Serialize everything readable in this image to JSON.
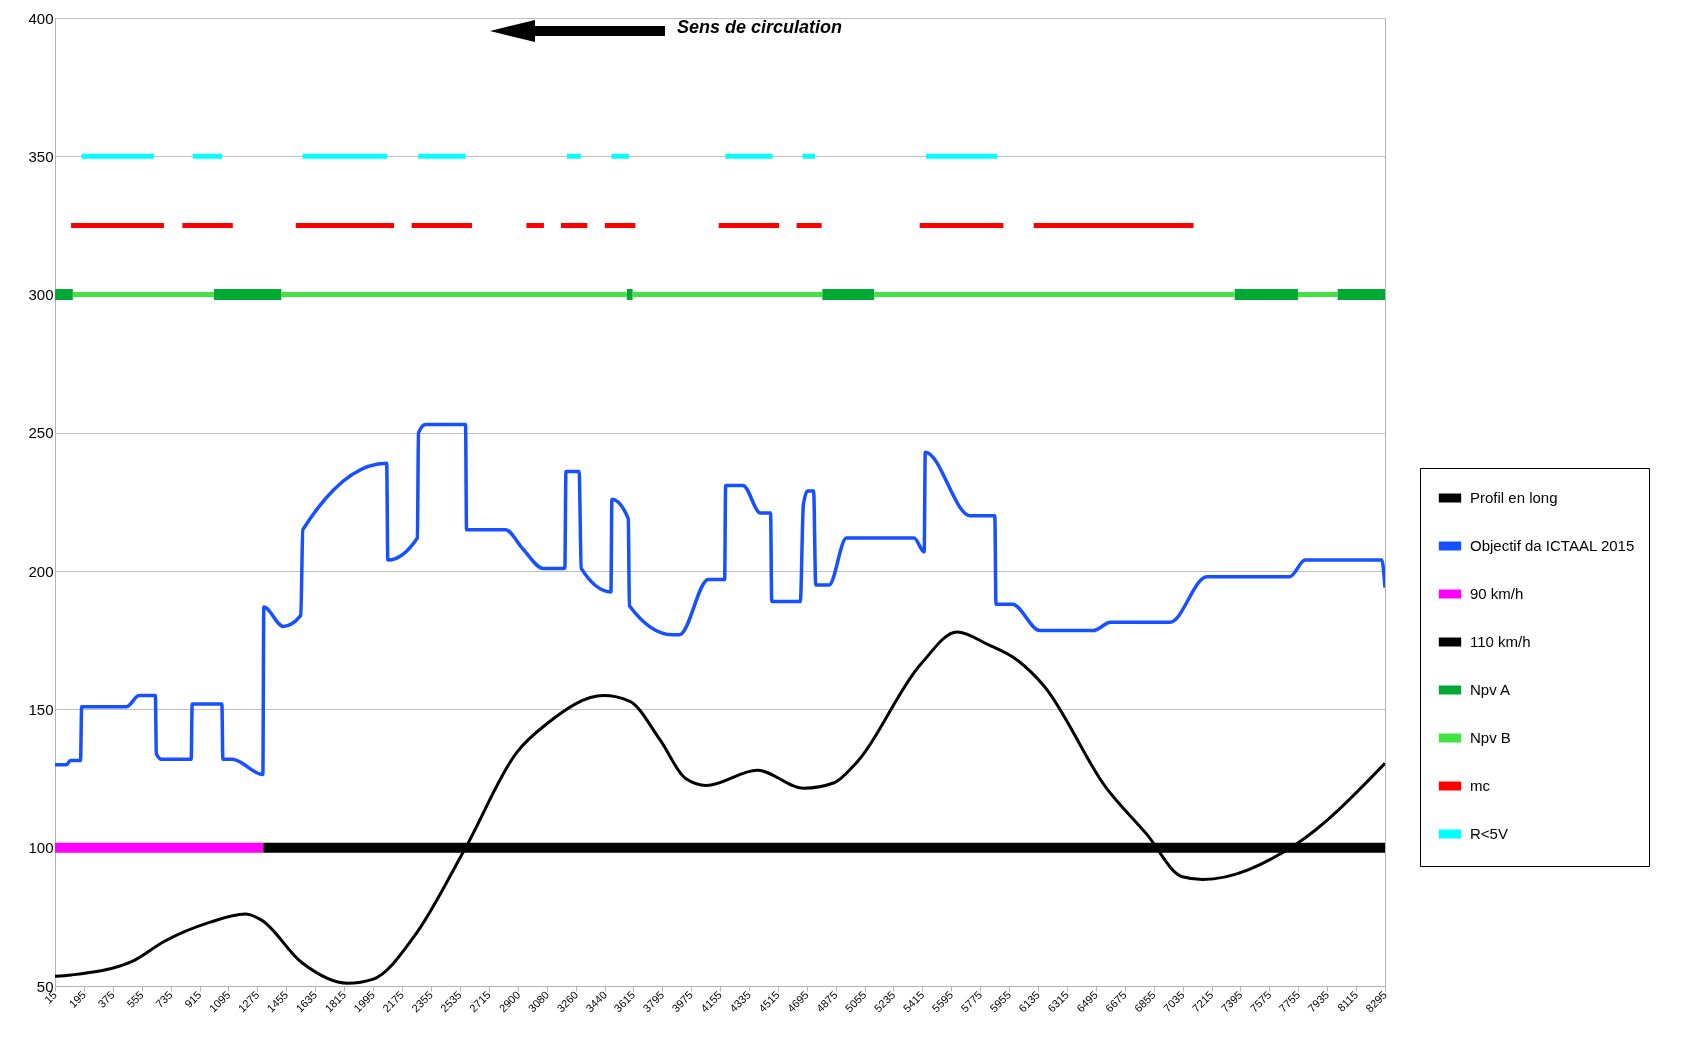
{
  "chart_data": {
    "type": "line",
    "annotations": [
      "Sens de circulation"
    ],
    "xlim": [
      15,
      8295
    ],
    "ylim": [
      50,
      400
    ],
    "xticks": [
      15,
      195,
      375,
      555,
      735,
      915,
      1095,
      1275,
      1455,
      1635,
      1815,
      1995,
      2175,
      2355,
      2535,
      2715,
      2900,
      3080,
      3260,
      3440,
      3615,
      3795,
      3975,
      4155,
      4335,
      4515,
      4695,
      4875,
      5055,
      5235,
      5415,
      5595,
      5775,
      5955,
      6135,
      6315,
      6495,
      6675,
      6855,
      7035,
      7215,
      7395,
      7575,
      7755,
      7935,
      8115,
      8295
    ],
    "yticks": [
      50,
      100,
      150,
      200,
      250,
      300,
      350,
      400
    ],
    "grid": "y",
    "legend": "right",
    "series": [
      {
        "name": "Profil en long",
        "color": "#000000",
        "x": [
          15,
          117,
          499,
          691,
          977,
          1200,
          1296,
          1551,
          1838,
          1997,
          2252,
          2571,
          2890,
          3081,
          3431,
          3591,
          3782,
          3941,
          4069,
          4388,
          4675,
          4866,
          4993,
          5407,
          5630,
          5822,
          6013,
          6172,
          6555,
          6810,
          7033,
          7160,
          7734,
          8295
        ],
        "values": [
          53.5,
          54,
          59,
          66,
          73,
          76,
          74,
          58.5,
          51,
          52.5,
          68,
          100,
          134.5,
          145,
          155,
          153,
          139,
          125,
          122.5,
          128,
          121.5,
          123.5,
          130,
          166.5,
          178,
          173.5,
          167.5,
          158.5,
          122,
          105,
          89.5,
          88.5,
          101,
          130.5
        ]
      },
      {
        "name": "Objectif da ICTAAL 2015",
        "color": "#1750ff",
        "x": [
          15,
          85,
          111,
          174,
          181,
          461,
          538,
          640,
          646,
          678,
          863,
          869,
          1054,
          1060,
          1118,
          1309,
          1315,
          1436,
          1545,
          1558,
          2080,
          2087,
          2271,
          2278,
          2322,
          2571,
          2577,
          2819,
          2928,
          3055,
          3189,
          3196,
          3278,
          3291,
          3476,
          3482,
          3584,
          3591,
          3859,
          3903,
          4082,
          4184,
          4190,
          4298,
          4407,
          4470,
          4477,
          4655,
          4674,
          4700,
          4738,
          4751,
          4834,
          4942,
          5363,
          5426,
          5433,
          5713,
          5866,
          5873,
          5975,
          6147,
          6478,
          6587,
          6956,
          7186,
          7702,
          7798,
          8275,
          8295
        ],
        "values": [
          130,
          130,
          131.5,
          131.5,
          151,
          151,
          155,
          155,
          134,
          132,
          132,
          152,
          152,
          132,
          132,
          126.5,
          187,
          180,
          184,
          215,
          239,
          204,
          212,
          250,
          253,
          253,
          215,
          215,
          208,
          201,
          201,
          236,
          236,
          201,
          192.5,
          226,
          219,
          187.5,
          177,
          177,
          197,
          197,
          231,
          231,
          221,
          221,
          189,
          189,
          224,
          229,
          229,
          195,
          195,
          212,
          212,
          207,
          243,
          220,
          220,
          188,
          188,
          178.5,
          178.5,
          181.5,
          181.5,
          198,
          198,
          204,
          204,
          194
        ]
      },
      {
        "name": "90 km/h",
        "color": "#ff00ff",
        "x": [
          15,
          1312
        ],
        "values": [
          100,
          100
        ]
      },
      {
        "name": "110 km/h",
        "color": "#000000",
        "x": [
          1312,
          8295
        ],
        "values": [
          100,
          100
        ]
      },
      {
        "name": "Npv A",
        "color": "#00a933",
        "x": [
          15,
          126,
          565,
          1004,
          1424,
          2500,
          3575,
          3611,
          4200,
          4792,
          5115,
          6200,
          7359,
          7753,
          7880,
          8000,
          8295
        ],
        "values": [
          300,
          300,
          null,
          300,
          300,
          null,
          300,
          300,
          null,
          300,
          300,
          null,
          300,
          300,
          null,
          300,
          300
        ]
      },
      {
        "name": "Npv B",
        "color": "#43e243",
        "x": [
          126,
          1004,
          1200,
          1424,
          3575,
          3590,
          3611,
          4792,
          4950,
          5115,
          7359,
          7550,
          7753,
          8000
        ],
        "values": [
          300,
          300,
          null,
          300,
          300,
          null,
          300,
          300,
          null,
          300,
          300,
          null,
          300,
          300
        ]
      },
      {
        "name": "mc",
        "color": "#ff0000",
        "x": [
          115,
          693,
          750,
          808,
          1122,
          1300,
          1514,
          2126,
          2180,
          2235,
          2611,
          2780,
          2950,
          3059,
          3110,
          3165,
          3329,
          3380,
          3438,
          3628,
          3900,
          4147,
          4523,
          4580,
          4632,
          4788,
          5100,
          5398,
          5919,
          6010,
          6108,
          7103
        ],
        "values": [
          325,
          325,
          null,
          325,
          325,
          null,
          325,
          325,
          null,
          325,
          325,
          null,
          325,
          325,
          null,
          325,
          325,
          null,
          325,
          325,
          null,
          325,
          325,
          null,
          325,
          325,
          null,
          325,
          325,
          null,
          325,
          325
        ]
      },
      {
        "name": "R<5V",
        "color": "#00ffff",
        "x": [
          180,
          631,
          750,
          873,
          1057,
          1300,
          1557,
          2083,
          2180,
          2276,
          2571,
          2900,
          3202,
          3289,
          3380,
          3479,
          3588,
          3900,
          4188,
          4483,
          4580,
          4669,
          4747,
          5100,
          5437,
          5881
        ],
        "values": [
          350,
          350,
          null,
          350,
          350,
          null,
          350,
          350,
          null,
          350,
          350,
          null,
          350,
          350,
          null,
          350,
          350,
          null,
          350,
          350,
          null,
          350,
          350,
          null,
          350,
          350
        ]
      }
    ]
  }
}
